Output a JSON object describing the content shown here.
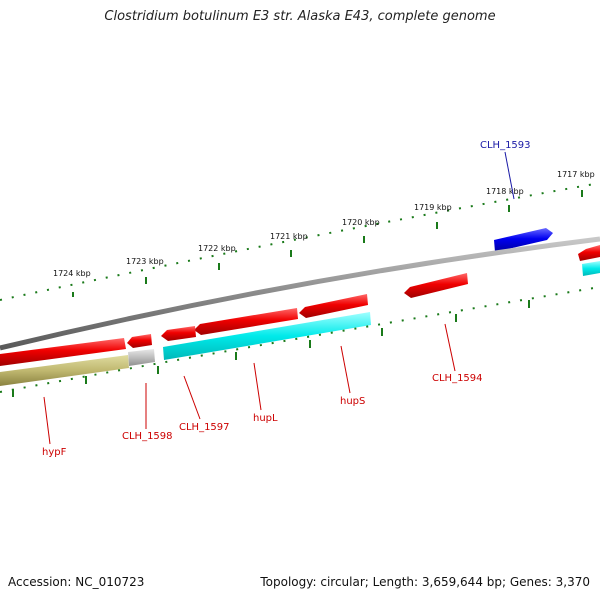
{
  "title": "Clostridium botulinum E3 str. Alaska E43, complete genome",
  "footer": {
    "accession": "Accession: NC_010723",
    "summary": "Topology: circular; Length: 3,659,644 bp; Genes: 3,370"
  },
  "scale": {
    "labels": [
      "1724 kbp",
      "1723 kbp",
      "1722 kbp",
      "1721 kbp",
      "1720 kbp",
      "1719 kbp",
      "1718 kbp",
      "1717 kbp"
    ]
  },
  "genes": [
    {
      "name": "CLH_1593",
      "color": "blue"
    },
    {
      "name": "CLH_1594",
      "color": "red"
    },
    {
      "name": "hupS",
      "color": "red"
    },
    {
      "name": "hupL",
      "color": "red"
    },
    {
      "name": "CLH_1597",
      "color": "red"
    },
    {
      "name": "CLH_1598",
      "color": "red"
    },
    {
      "name": "hypF",
      "color": "red"
    }
  ],
  "colors": {
    "forward_gene": "#1010e0",
    "reverse_gene": "#e80000",
    "cds_cyan": "#00e6e6",
    "cds_olive": "#b8b060",
    "cds_gray": "#b0b0b0",
    "backbone": "#8a8a8a",
    "scale_ticks": "#1a7a1a"
  }
}
